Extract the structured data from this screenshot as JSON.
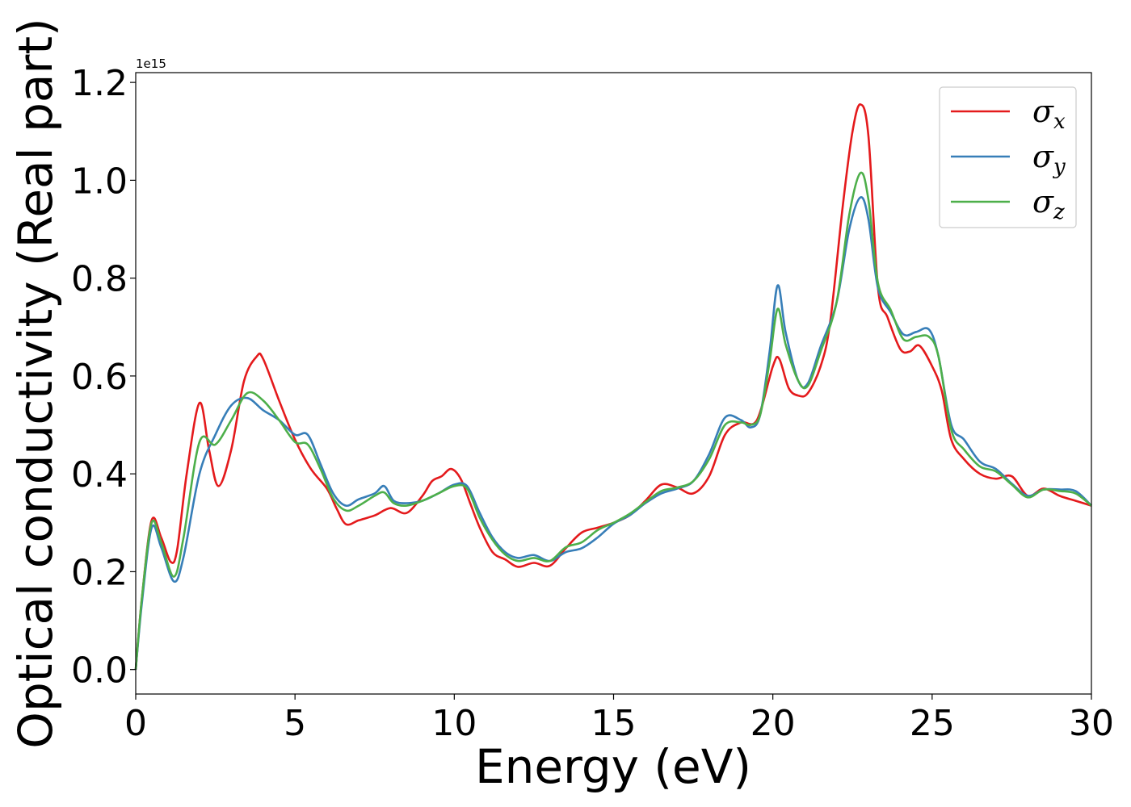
{
  "chart_data": {
    "type": "line",
    "title": "",
    "xlabel": "Energy (eV)",
    "ylabel": "Optical conductivity (Real part)",
    "y_offset_label": "1e15",
    "xlim": [
      0,
      30
    ],
    "ylim": [
      -0.05,
      1.22
    ],
    "xticks": [
      0,
      5,
      10,
      15,
      20,
      25,
      30
    ],
    "xtick_labels": [
      "0",
      "5",
      "10",
      "15",
      "20",
      "25",
      "30"
    ],
    "yticks": [
      0.0,
      0.2,
      0.4,
      0.6,
      0.8,
      1.0,
      1.2
    ],
    "ytick_labels": [
      "0.0",
      "0.2",
      "0.4",
      "0.6",
      "0.8",
      "1.0",
      "1.2"
    ],
    "grid": false,
    "legend_position": "top-right",
    "series": [
      {
        "name": "σx",
        "legend_base": "σ",
        "legend_sub": "x",
        "color": "#e41a1c",
        "points": [
          [
            0,
            0.0
          ],
          [
            0.2,
            0.15
          ],
          [
            0.5,
            0.305
          ],
          [
            0.8,
            0.27
          ],
          [
            1.1,
            0.22
          ],
          [
            1.3,
            0.245
          ],
          [
            1.6,
            0.4
          ],
          [
            2.0,
            0.545
          ],
          [
            2.3,
            0.45
          ],
          [
            2.6,
            0.375
          ],
          [
            3.0,
            0.45
          ],
          [
            3.4,
            0.59
          ],
          [
            3.8,
            0.64
          ],
          [
            4.0,
            0.635
          ],
          [
            4.5,
            0.55
          ],
          [
            5.0,
            0.47
          ],
          [
            5.5,
            0.41
          ],
          [
            6.0,
            0.37
          ],
          [
            6.3,
            0.33
          ],
          [
            6.6,
            0.297
          ],
          [
            7.0,
            0.305
          ],
          [
            7.5,
            0.315
          ],
          [
            8.0,
            0.33
          ],
          [
            8.5,
            0.32
          ],
          [
            9.0,
            0.355
          ],
          [
            9.3,
            0.385
          ],
          [
            9.6,
            0.395
          ],
          [
            9.9,
            0.41
          ],
          [
            10.2,
            0.39
          ],
          [
            10.5,
            0.34
          ],
          [
            10.8,
            0.29
          ],
          [
            11.2,
            0.24
          ],
          [
            11.6,
            0.225
          ],
          [
            12.0,
            0.21
          ],
          [
            12.5,
            0.218
          ],
          [
            13.0,
            0.212
          ],
          [
            13.5,
            0.248
          ],
          [
            14.0,
            0.28
          ],
          [
            14.5,
            0.29
          ],
          [
            15.0,
            0.3
          ],
          [
            15.5,
            0.315
          ],
          [
            16.0,
            0.345
          ],
          [
            16.5,
            0.378
          ],
          [
            17.0,
            0.372
          ],
          [
            17.5,
            0.36
          ],
          [
            18.0,
            0.395
          ],
          [
            18.5,
            0.48
          ],
          [
            19.0,
            0.505
          ],
          [
            19.5,
            0.51
          ],
          [
            20.0,
            0.62
          ],
          [
            20.2,
            0.635
          ],
          [
            20.5,
            0.575
          ],
          [
            20.8,
            0.56
          ],
          [
            21.1,
            0.565
          ],
          [
            21.5,
            0.62
          ],
          [
            21.8,
            0.71
          ],
          [
            22.2,
            0.95
          ],
          [
            22.5,
            1.1
          ],
          [
            22.75,
            1.155
          ],
          [
            23.0,
            1.09
          ],
          [
            23.3,
            0.78
          ],
          [
            23.6,
            0.72
          ],
          [
            24.0,
            0.655
          ],
          [
            24.3,
            0.65
          ],
          [
            24.6,
            0.662
          ],
          [
            25.0,
            0.62
          ],
          [
            25.3,
            0.57
          ],
          [
            25.6,
            0.47
          ],
          [
            26.0,
            0.43
          ],
          [
            26.5,
            0.4
          ],
          [
            27.0,
            0.39
          ],
          [
            27.5,
            0.395
          ],
          [
            28.0,
            0.355
          ],
          [
            28.5,
            0.37
          ],
          [
            29.0,
            0.355
          ],
          [
            29.5,
            0.345
          ],
          [
            30.0,
            0.335
          ]
        ]
      },
      {
        "name": "σy",
        "legend_base": "σ",
        "legend_sub": "y",
        "color": "#377eb8",
        "points": [
          [
            0,
            0.0
          ],
          [
            0.2,
            0.14
          ],
          [
            0.5,
            0.29
          ],
          [
            0.8,
            0.25
          ],
          [
            1.2,
            0.18
          ],
          [
            1.5,
            0.23
          ],
          [
            2.0,
            0.4
          ],
          [
            2.5,
            0.48
          ],
          [
            3.0,
            0.54
          ],
          [
            3.5,
            0.555
          ],
          [
            4.0,
            0.53
          ],
          [
            4.5,
            0.51
          ],
          [
            5.0,
            0.48
          ],
          [
            5.4,
            0.48
          ],
          [
            5.8,
            0.42
          ],
          [
            6.2,
            0.36
          ],
          [
            6.6,
            0.335
          ],
          [
            7.0,
            0.348
          ],
          [
            7.5,
            0.36
          ],
          [
            7.8,
            0.375
          ],
          [
            8.1,
            0.345
          ],
          [
            8.5,
            0.34
          ],
          [
            9.0,
            0.345
          ],
          [
            9.5,
            0.36
          ],
          [
            10.0,
            0.378
          ],
          [
            10.4,
            0.375
          ],
          [
            10.8,
            0.32
          ],
          [
            11.2,
            0.27
          ],
          [
            11.6,
            0.24
          ],
          [
            12.0,
            0.228
          ],
          [
            12.5,
            0.234
          ],
          [
            13.0,
            0.222
          ],
          [
            13.5,
            0.24
          ],
          [
            14.0,
            0.248
          ],
          [
            14.5,
            0.27
          ],
          [
            15.0,
            0.298
          ],
          [
            15.5,
            0.315
          ],
          [
            16.0,
            0.34
          ],
          [
            16.5,
            0.36
          ],
          [
            17.0,
            0.37
          ],
          [
            17.5,
            0.385
          ],
          [
            18.0,
            0.44
          ],
          [
            18.5,
            0.515
          ],
          [
            19.0,
            0.51
          ],
          [
            19.3,
            0.495
          ],
          [
            19.6,
            0.52
          ],
          [
            19.9,
            0.65
          ],
          [
            20.15,
            0.785
          ],
          [
            20.4,
            0.69
          ],
          [
            20.8,
            0.59
          ],
          [
            21.1,
            0.585
          ],
          [
            21.5,
            0.66
          ],
          [
            22.0,
            0.75
          ],
          [
            22.4,
            0.9
          ],
          [
            22.75,
            0.965
          ],
          [
            23.0,
            0.92
          ],
          [
            23.3,
            0.78
          ],
          [
            23.7,
            0.73
          ],
          [
            24.1,
            0.685
          ],
          [
            24.5,
            0.69
          ],
          [
            24.9,
            0.695
          ],
          [
            25.2,
            0.64
          ],
          [
            25.6,
            0.5
          ],
          [
            26.0,
            0.47
          ],
          [
            26.5,
            0.425
          ],
          [
            27.0,
            0.41
          ],
          [
            27.5,
            0.38
          ],
          [
            28.0,
            0.355
          ],
          [
            28.5,
            0.368
          ],
          [
            29.0,
            0.368
          ],
          [
            29.5,
            0.365
          ],
          [
            30.0,
            0.335
          ]
        ]
      },
      {
        "name": "σz",
        "legend_base": "σ",
        "legend_sub": "z",
        "color": "#4daf4a",
        "points": [
          [
            0,
            0.0
          ],
          [
            0.2,
            0.15
          ],
          [
            0.5,
            0.3
          ],
          [
            0.8,
            0.26
          ],
          [
            1.2,
            0.19
          ],
          [
            1.5,
            0.27
          ],
          [
            2.0,
            0.465
          ],
          [
            2.5,
            0.46
          ],
          [
            3.0,
            0.51
          ],
          [
            3.5,
            0.565
          ],
          [
            4.0,
            0.55
          ],
          [
            4.5,
            0.51
          ],
          [
            5.0,
            0.465
          ],
          [
            5.4,
            0.46
          ],
          [
            5.8,
            0.41
          ],
          [
            6.2,
            0.35
          ],
          [
            6.6,
            0.325
          ],
          [
            7.0,
            0.335
          ],
          [
            7.5,
            0.355
          ],
          [
            7.8,
            0.362
          ],
          [
            8.1,
            0.34
          ],
          [
            8.5,
            0.335
          ],
          [
            9.0,
            0.345
          ],
          [
            9.5,
            0.36
          ],
          [
            10.0,
            0.375
          ],
          [
            10.4,
            0.37
          ],
          [
            10.8,
            0.31
          ],
          [
            11.2,
            0.265
          ],
          [
            11.6,
            0.235
          ],
          [
            12.0,
            0.222
          ],
          [
            12.5,
            0.228
          ],
          [
            13.0,
            0.222
          ],
          [
            13.5,
            0.25
          ],
          [
            14.0,
            0.26
          ],
          [
            14.5,
            0.285
          ],
          [
            15.0,
            0.3
          ],
          [
            15.5,
            0.318
          ],
          [
            16.0,
            0.342
          ],
          [
            16.5,
            0.365
          ],
          [
            17.0,
            0.372
          ],
          [
            17.5,
            0.385
          ],
          [
            18.0,
            0.43
          ],
          [
            18.5,
            0.5
          ],
          [
            19.0,
            0.505
          ],
          [
            19.3,
            0.5
          ],
          [
            19.6,
            0.52
          ],
          [
            19.9,
            0.63
          ],
          [
            20.15,
            0.737
          ],
          [
            20.4,
            0.665
          ],
          [
            20.8,
            0.59
          ],
          [
            21.1,
            0.58
          ],
          [
            21.5,
            0.65
          ],
          [
            22.0,
            0.75
          ],
          [
            22.4,
            0.93
          ],
          [
            22.75,
            1.015
          ],
          [
            23.0,
            0.96
          ],
          [
            23.3,
            0.79
          ],
          [
            23.7,
            0.735
          ],
          [
            24.1,
            0.675
          ],
          [
            24.5,
            0.68
          ],
          [
            24.9,
            0.68
          ],
          [
            25.2,
            0.64
          ],
          [
            25.6,
            0.49
          ],
          [
            26.0,
            0.45
          ],
          [
            26.5,
            0.415
          ],
          [
            27.0,
            0.405
          ],
          [
            27.5,
            0.378
          ],
          [
            28.0,
            0.352
          ],
          [
            28.5,
            0.368
          ],
          [
            29.0,
            0.365
          ],
          [
            29.5,
            0.36
          ],
          [
            30.0,
            0.335
          ]
        ]
      }
    ]
  }
}
